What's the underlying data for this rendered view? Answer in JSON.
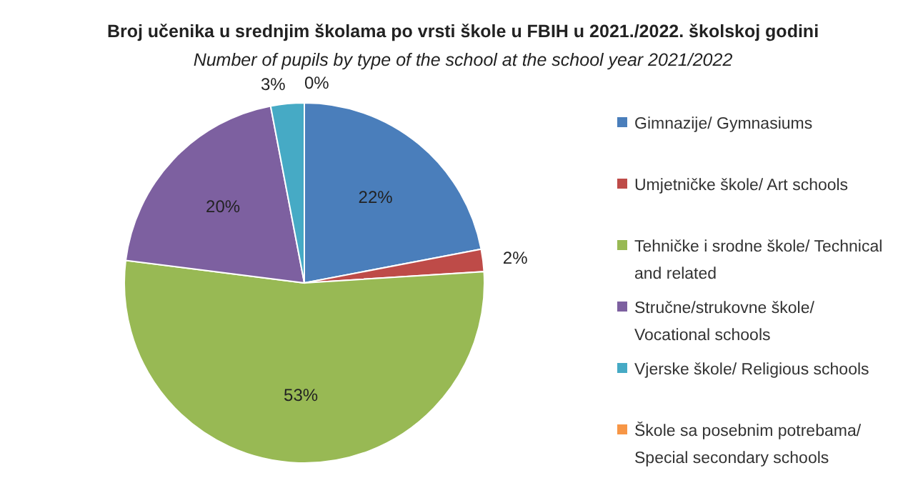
{
  "chart_data": {
    "type": "pie",
    "title": "Broj učenika u srednjim školama po vrsti škole u FBIH u 2021./2022. školskoj godini",
    "subtitle": "Number of pupils by type of the school at the school year 2021/2022",
    "categories": [
      "Gimnazije/ Gymnasiums",
      "Umjetničke škole/ Art schools",
      "Tehničke i srodne škole/ Technical and related",
      "Stručne/strukovne škole/ Vocational schools",
      "Vjerske škole/ Religious schools",
      "Škole sa posebnim potrebama/ Special secondary schools"
    ],
    "values": [
      22,
      2,
      53,
      20,
      3,
      0
    ],
    "value_labels": [
      "22%",
      "2%",
      "53%",
      "20%",
      "3%",
      "0%"
    ],
    "colors": [
      "#4a7ebb",
      "#be4b48",
      "#98b954",
      "#7d60a0",
      "#46aac5",
      "#f79646"
    ],
    "legend": "right"
  }
}
